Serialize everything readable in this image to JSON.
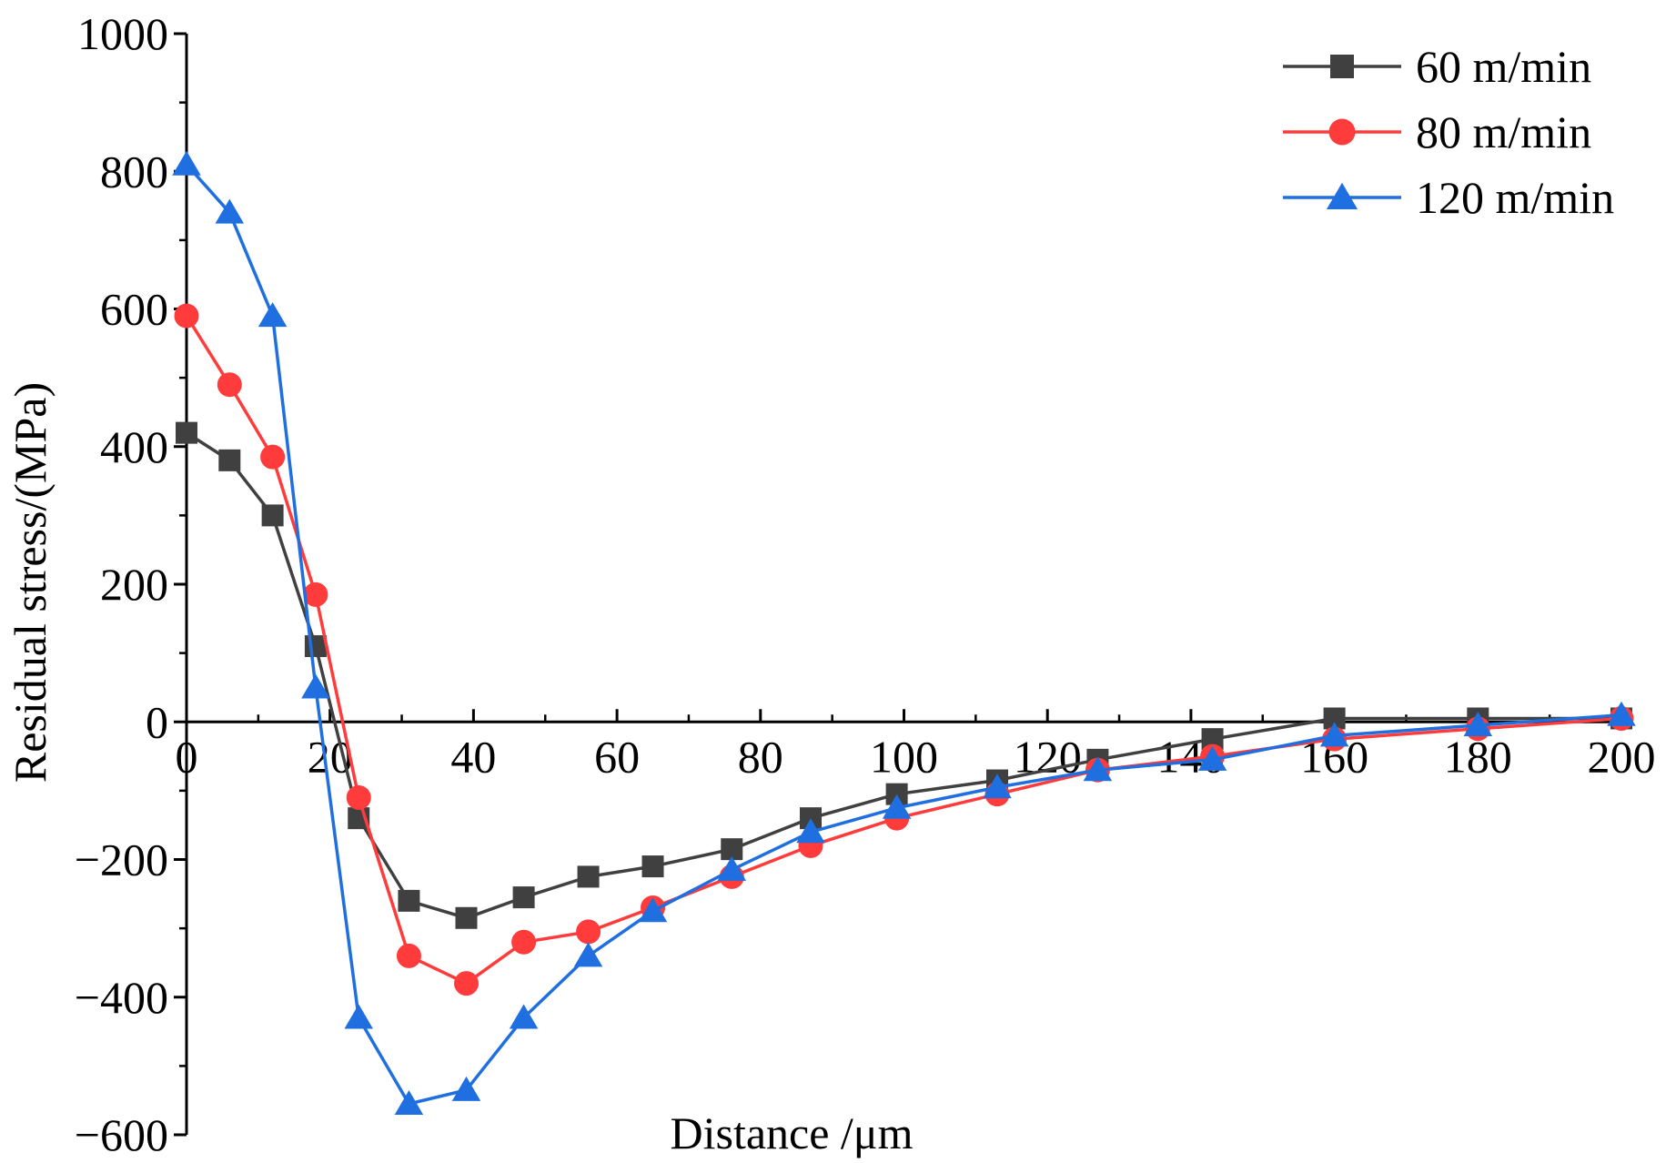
{
  "chart_data": {
    "type": "line",
    "title": "",
    "xlabel": "Distance /μm",
    "ylabel": "Residual stress/(MPa)",
    "xlim": [
      0,
      200
    ],
    "ylim": [
      -600,
      1000
    ],
    "xticks": [
      0,
      20,
      40,
      60,
      80,
      100,
      120,
      140,
      160,
      180,
      200
    ],
    "yticks": [
      -600,
      -400,
      -200,
      0,
      200,
      400,
      600,
      800,
      1000
    ],
    "xtick_labels": [
      "0",
      "20",
      "40",
      "60",
      "80",
      "100",
      "120",
      "140",
      "160",
      "180",
      "200"
    ],
    "ytick_labels": [
      "−600",
      "−400",
      "−200",
      "0",
      "200",
      "400",
      "600",
      "800",
      "1000"
    ],
    "legend_position": "top-right",
    "series": [
      {
        "name": "60 m/min",
        "color": "#404040",
        "marker": "square",
        "x": [
          0,
          6,
          12,
          18,
          24,
          31,
          39,
          47,
          56,
          65,
          76,
          87,
          99,
          113,
          127,
          143,
          160,
          180,
          200
        ],
        "y": [
          420,
          380,
          300,
          110,
          -140,
          -260,
          -285,
          -255,
          -225,
          -210,
          -185,
          -140,
          -105,
          -85,
          -55,
          -25,
          5,
          5,
          5
        ]
      },
      {
        "name": "80 m/min",
        "color": "#ff3b3b",
        "marker": "circle",
        "x": [
          0,
          6,
          12,
          18,
          24,
          31,
          39,
          47,
          56,
          65,
          76,
          87,
          99,
          113,
          127,
          143,
          160,
          180,
          200
        ],
        "y": [
          590,
          490,
          385,
          185,
          -110,
          -340,
          -380,
          -320,
          -305,
          -270,
          -225,
          -180,
          -140,
          -105,
          -70,
          -50,
          -25,
          -10,
          5
        ]
      },
      {
        "name": "120 m/min",
        "color": "#1f6fe0",
        "marker": "triangle",
        "x": [
          0,
          6,
          12,
          18,
          24,
          31,
          39,
          47,
          56,
          65,
          76,
          87,
          99,
          113,
          127,
          143,
          160,
          180,
          200
        ],
        "y": [
          810,
          740,
          590,
          50,
          -430,
          -555,
          -535,
          -430,
          -340,
          -275,
          -215,
          -160,
          -125,
          -95,
          -70,
          -55,
          -20,
          -5,
          10
        ]
      }
    ]
  }
}
